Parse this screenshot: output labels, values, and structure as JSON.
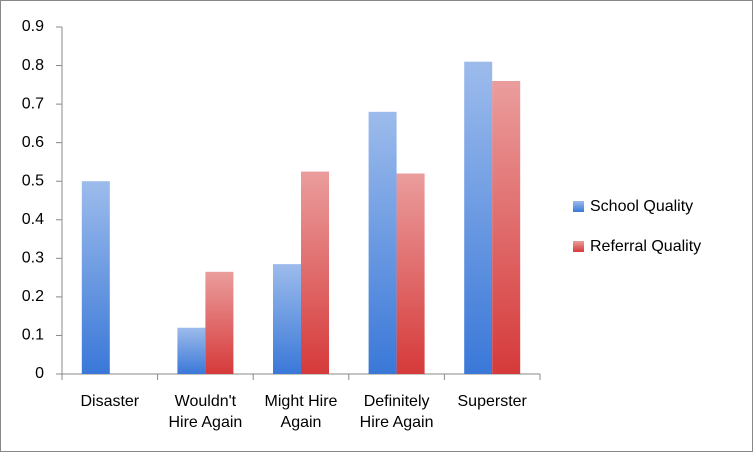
{
  "chart_data": {
    "type": "bar",
    "categories": [
      "Disaster",
      "Wouldn't Hire Again",
      "Might Hire Again",
      "Definitely Hire Again",
      "Superster"
    ],
    "series": [
      {
        "name": "School Quality",
        "color": "#3a78d8",
        "values": [
          0.5,
          0.12,
          0.285,
          0.68,
          0.81
        ]
      },
      {
        "name": "Referral Quality",
        "color": "#d63a3a",
        "values": [
          0,
          0.265,
          0.525,
          0.52,
          0.76
        ]
      }
    ],
    "ylim": [
      0,
      0.9
    ],
    "yticks": [
      0,
      0.1,
      0.2,
      0.3,
      0.4,
      0.5,
      0.6,
      0.7,
      0.8,
      0.9
    ],
    "grid": false,
    "legend": "right"
  }
}
